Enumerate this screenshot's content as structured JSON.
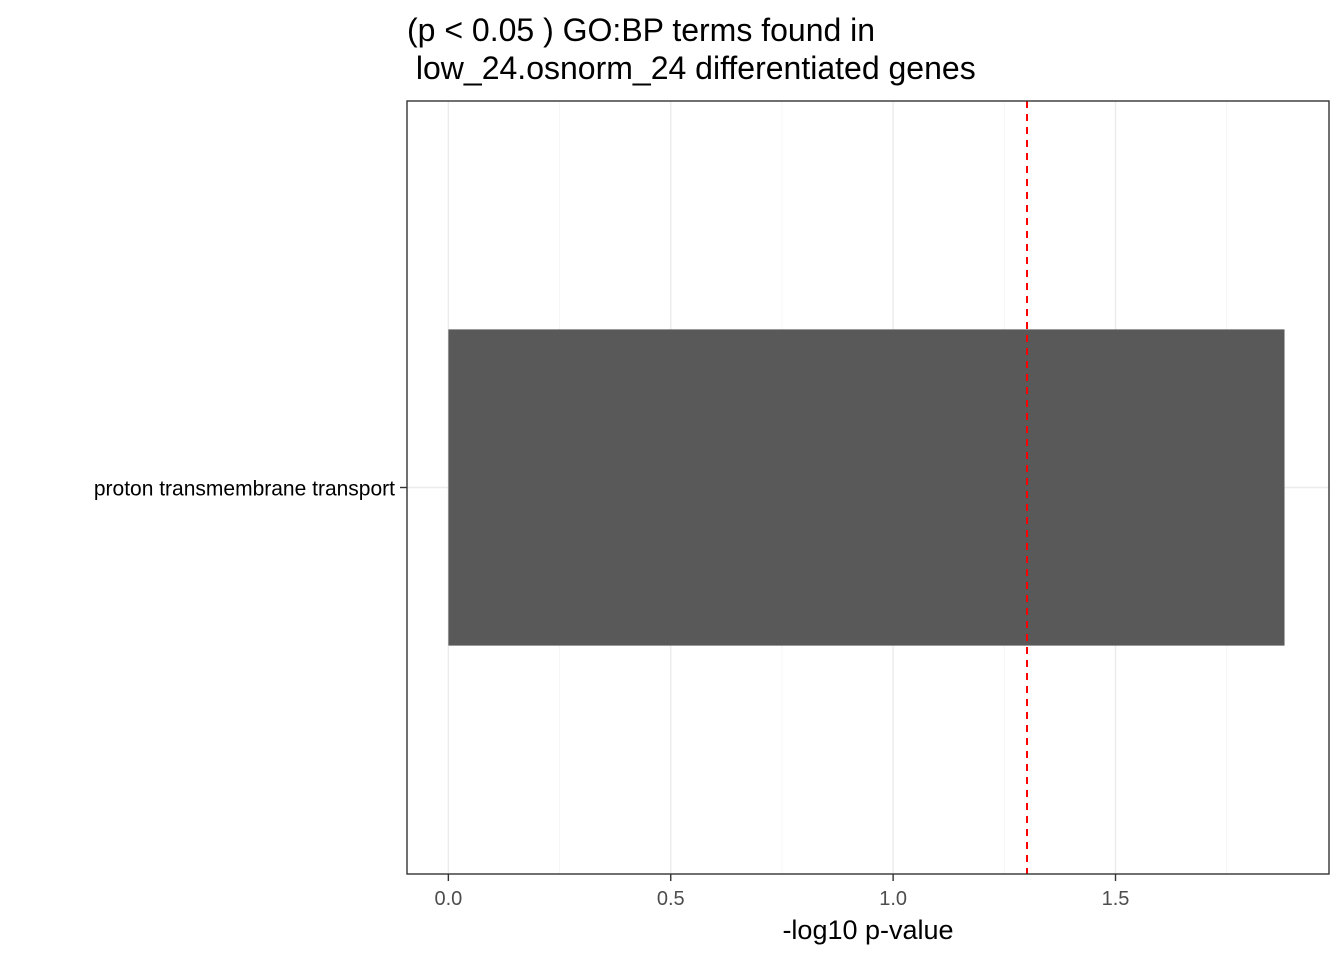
{
  "chart_data": {
    "type": "bar",
    "orientation": "horizontal",
    "title": [
      "(p < 0.05 ) GO:BP terms found in",
      " low_24.osnorm_24 differentiated genes"
    ],
    "xlabel": "-log10 p-value",
    "ylabel": "",
    "categories": [
      "proton transmembrane transport"
    ],
    "values": [
      1.88
    ],
    "xlim": [
      -0.093,
      1.98
    ],
    "xticks": [
      0.0,
      0.5,
      1.0,
      1.5
    ],
    "xtick_labels": [
      "0.0",
      "0.5",
      "1.0",
      "1.5"
    ],
    "reference_line": {
      "value": 1.30103,
      "style": "dashed",
      "color": "#ff0000"
    },
    "bar_color": "#595959",
    "grid": true,
    "theme": "bw"
  }
}
